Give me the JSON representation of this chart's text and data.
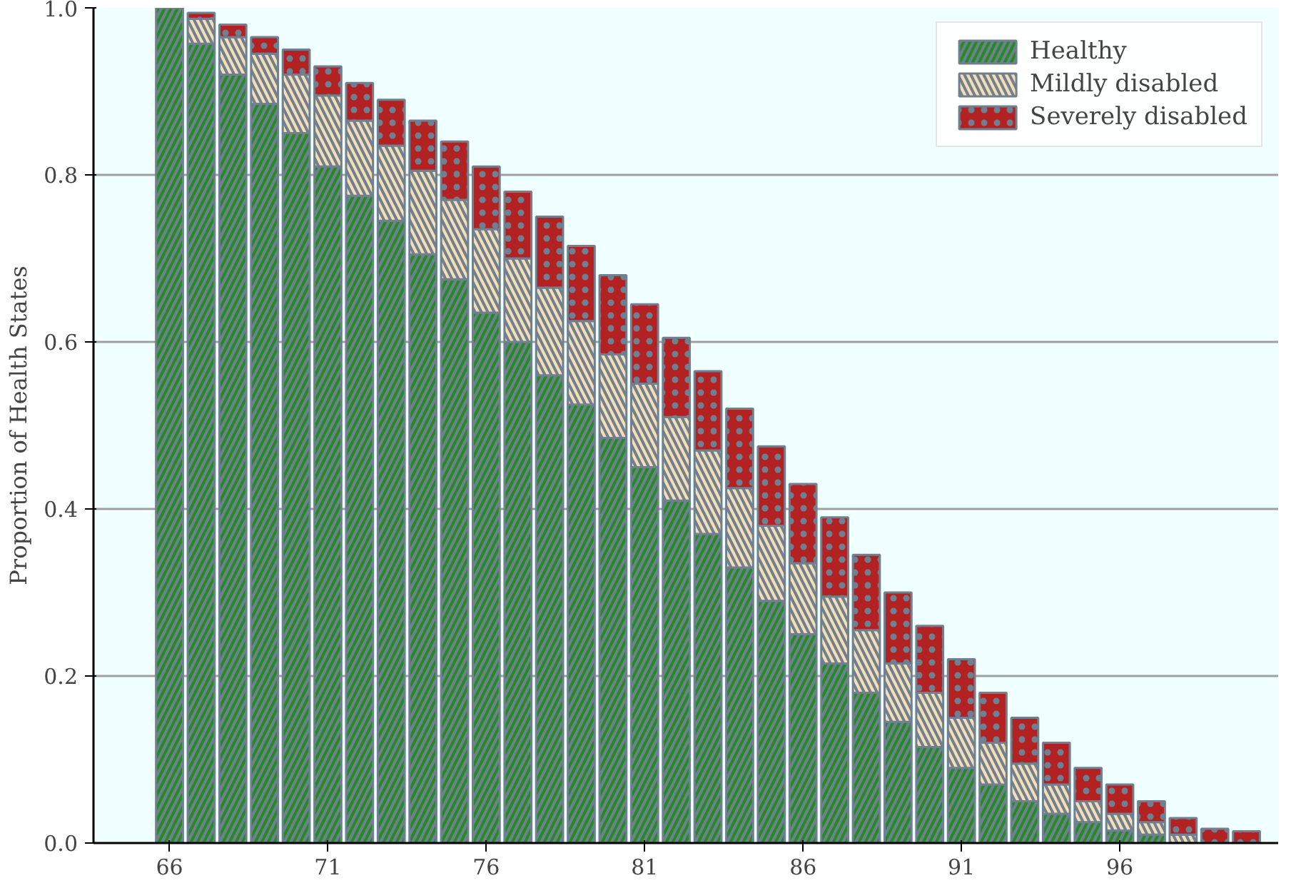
{
  "chart_data": {
    "type": "bar",
    "stacked": true,
    "ylabel": "Proportion of Health States",
    "x": [
      66,
      67,
      68,
      69,
      70,
      71,
      72,
      73,
      74,
      75,
      76,
      77,
      78,
      79,
      80,
      81,
      82,
      83,
      84,
      85,
      86,
      87,
      88,
      89,
      90,
      91,
      92,
      93,
      94,
      95,
      96,
      97,
      98,
      99,
      100
    ],
    "series": [
      {
        "name": "Healthy",
        "color": "#228b22",
        "values": [
          1.0,
          0.957,
          0.92,
          0.885,
          0.85,
          0.81,
          0.775,
          0.745,
          0.705,
          0.675,
          0.635,
          0.6,
          0.56,
          0.525,
          0.485,
          0.45,
          0.41,
          0.37,
          0.33,
          0.29,
          0.25,
          0.215,
          0.18,
          0.145,
          0.115,
          0.09,
          0.07,
          0.05,
          0.035,
          0.025,
          0.015,
          0.01,
          null,
          null,
          null
        ]
      },
      {
        "name": "Mildly disabled",
        "color": "#f5deb3",
        "values": [
          null,
          0.03,
          0.045,
          0.06,
          0.07,
          0.085,
          0.09,
          0.09,
          0.1,
          0.095,
          0.1,
          0.1,
          0.105,
          0.1,
          0.1,
          0.1,
          0.1,
          0.1,
          0.095,
          0.09,
          0.085,
          0.08,
          0.075,
          0.07,
          0.065,
          0.06,
          0.05,
          0.045,
          0.035,
          0.025,
          0.02,
          0.015,
          0.01,
          null,
          null
        ]
      },
      {
        "name": "Severely disabled",
        "color": "#b22222",
        "values": [
          null,
          0.007,
          0.015,
          0.02,
          0.03,
          0.035,
          0.045,
          0.055,
          0.06,
          0.07,
          0.075,
          0.08,
          0.085,
          0.09,
          0.095,
          0.095,
          0.095,
          0.095,
          0.095,
          0.095,
          0.095,
          0.095,
          0.09,
          0.085,
          0.08,
          0.07,
          0.06,
          0.055,
          0.05,
          0.04,
          0.035,
          0.025,
          0.02,
          0.017,
          0.014
        ]
      }
    ],
    "xlim": [
      63.6,
      101
    ],
    "xticks": [
      66,
      71,
      76,
      81,
      86,
      91,
      96
    ],
    "ylim": [
      0,
      1
    ],
    "yticks": [
      {
        "value": 0,
        "label": "0.0"
      },
      0.2,
      0.4,
      0.6,
      0.8,
      {
        "value": 1,
        "label": "1.0"
      }
    ],
    "grid": "y",
    "legend": "top right"
  }
}
